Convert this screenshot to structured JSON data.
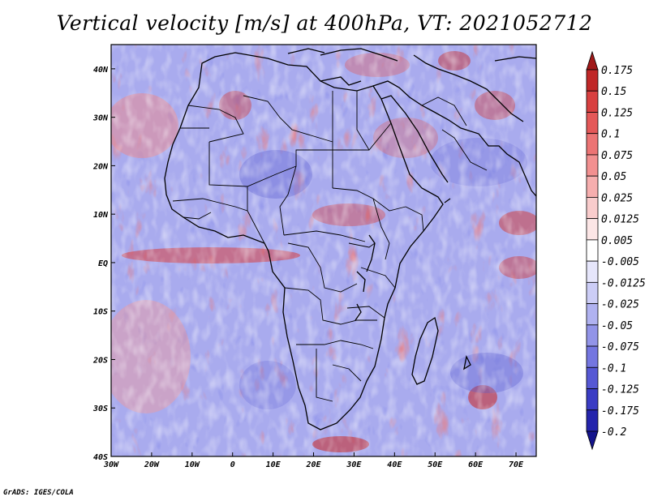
{
  "title": "Vertical velocity [m/s] at 400hPa, VT: 2021052712",
  "credit": "GrADS: IGES/COLA",
  "map": {
    "lon_range": [
      -30,
      75
    ],
    "lat_range": [
      -40,
      45
    ],
    "lon_ticks": [
      "30W",
      "20W",
      "10W",
      "0",
      "10E",
      "20E",
      "30E",
      "40E",
      "50E",
      "60E",
      "70E"
    ],
    "lat_ticks": [
      "40S",
      "30S",
      "20S",
      "10S",
      "EQ",
      "10N",
      "20N",
      "30N",
      "40N"
    ]
  },
  "colorbar": {
    "labels": [
      "0.175",
      "0.15",
      "0.125",
      "0.1",
      "0.075",
      "0.05",
      "0.025",
      "0.0125",
      "0.005",
      "-0.005",
      "-0.0125",
      "-0.025",
      "-0.05",
      "-0.075",
      "-0.1",
      "-0.125",
      "-0.175",
      "-0.2"
    ],
    "colors": [
      "#a01818",
      "#c02828",
      "#d84040",
      "#e45858",
      "#ec7474",
      "#f29090",
      "#f6aeae",
      "#f9cccc",
      "#fce6e6",
      "#ffffff",
      "#e6e6fb",
      "#cccdf6",
      "#b0b2f0",
      "#9294e8",
      "#7476e0",
      "#5658d4",
      "#3a3cc4",
      "#2424ac",
      "#14148c"
    ]
  },
  "field_colors": {
    "positive": "#e45a5a",
    "negative": "#6a6cdc",
    "neutral": "#ffffff"
  }
}
